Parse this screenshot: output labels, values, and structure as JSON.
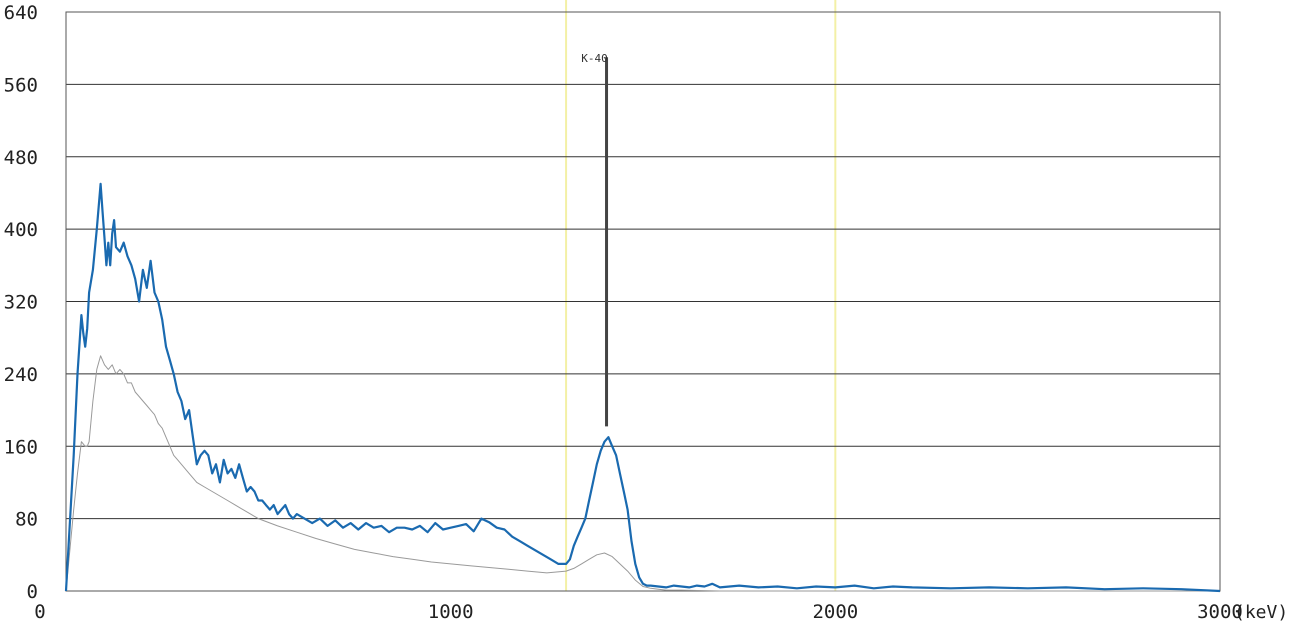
{
  "chart_data": {
    "type": "line",
    "title": "",
    "xlabel": "",
    "ylabel": "",
    "x_unit": "(keV)",
    "xlim": [
      0,
      3000
    ],
    "ylim": [
      0,
      640
    ],
    "x_ticks": [
      "0",
      "1000",
      "2000",
      "3000"
    ],
    "y_ticks": [
      "0",
      "80",
      "160",
      "240",
      "320",
      "400",
      "480",
      "560",
      "640"
    ],
    "grid": "horizontal",
    "legend": "none",
    "colors": {
      "sample": "#1a6ab0",
      "background": "#9a9a9a",
      "marker": "#444444",
      "highlight": "#f3f0a6",
      "grid": "#333333"
    },
    "annotations": [
      {
        "label": "K-40",
        "x": 1400,
        "y_top": 590,
        "y_bottom": 182
      }
    ],
    "highlight_x": [
      1300,
      2000
    ],
    "series": [
      {
        "id": "sample",
        "x": [
          0,
          20,
          30,
          40,
          45,
          50,
          55,
          60,
          70,
          80,
          90,
          95,
          100,
          105,
          110,
          115,
          120,
          125,
          130,
          140,
          150,
          160,
          170,
          180,
          190,
          200,
          210,
          220,
          230,
          240,
          250,
          260,
          270,
          280,
          290,
          300,
          310,
          320,
          330,
          340,
          350,
          360,
          370,
          380,
          390,
          400,
          410,
          420,
          430,
          440,
          450,
          460,
          470,
          480,
          490,
          500,
          510,
          520,
          530,
          540,
          550,
          560,
          570,
          580,
          590,
          600,
          620,
          640,
          660,
          680,
          700,
          720,
          740,
          760,
          780,
          800,
          820,
          840,
          860,
          880,
          900,
          920,
          940,
          960,
          980,
          1000,
          1020,
          1040,
          1060,
          1080,
          1100,
          1120,
          1140,
          1160,
          1180,
          1200,
          1220,
          1240,
          1260,
          1280,
          1300,
          1310,
          1320,
          1330,
          1340,
          1350,
          1360,
          1370,
          1380,
          1390,
          1400,
          1410,
          1420,
          1430,
          1440,
          1450,
          1460,
          1470,
          1480,
          1490,
          1500,
          1510,
          1520,
          1540,
          1560,
          1580,
          1600,
          1620,
          1640,
          1660,
          1680,
          1700,
          1750,
          1800,
          1850,
          1900,
          1950,
          2000,
          2050,
          2100,
          2150,
          2200,
          2300,
          2400,
          2500,
          2600,
          2700,
          2800,
          2900,
          3000
        ],
        "y": [
          0,
          150,
          240,
          305,
          285,
          270,
          290,
          330,
          355,
          400,
          450,
          420,
          390,
          360,
          385,
          360,
          395,
          410,
          380,
          375,
          385,
          370,
          360,
          345,
          320,
          355,
          335,
          365,
          330,
          320,
          300,
          270,
          255,
          240,
          220,
          210,
          190,
          200,
          170,
          140,
          150,
          155,
          150,
          130,
          140,
          120,
          145,
          130,
          135,
          125,
          140,
          125,
          110,
          115,
          110,
          100,
          100,
          95,
          90,
          95,
          85,
          90,
          95,
          85,
          80,
          85,
          80,
          75,
          80,
          72,
          78,
          70,
          75,
          68,
          75,
          70,
          72,
          65,
          70,
          70,
          68,
          72,
          65,
          75,
          68,
          70,
          72,
          74,
          66,
          80,
          76,
          70,
          68,
          60,
          55,
          50,
          45,
          40,
          35,
          30,
          30,
          35,
          50,
          60,
          70,
          80,
          100,
          120,
          140,
          155,
          165,
          170,
          160,
          150,
          130,
          110,
          90,
          55,
          30,
          15,
          8,
          6,
          6,
          5,
          4,
          6,
          5,
          4,
          6,
          5,
          8,
          4,
          6,
          4,
          5,
          3,
          5,
          4,
          6,
          3,
          5,
          4,
          3,
          4,
          3,
          4,
          2,
          3,
          2,
          0
        ]
      },
      {
        "id": "background",
        "x": [
          0,
          20,
          30,
          40,
          50,
          55,
          60,
          70,
          80,
          90,
          100,
          110,
          120,
          130,
          140,
          150,
          160,
          170,
          180,
          190,
          200,
          210,
          220,
          230,
          240,
          250,
          260,
          270,
          280,
          290,
          300,
          320,
          340,
          360,
          380,
          400,
          420,
          440,
          460,
          480,
          500,
          550,
          600,
          650,
          700,
          750,
          800,
          850,
          900,
          950,
          1000,
          1050,
          1100,
          1150,
          1200,
          1250,
          1300,
          1320,
          1340,
          1360,
          1380,
          1400,
          1420,
          1440,
          1460,
          1480,
          1500,
          1520,
          1540,
          1560,
          1600,
          1700,
          1800,
          1900,
          2000,
          2200,
          2400,
          2600,
          2800,
          3000
        ],
        "y": [
          0,
          90,
          130,
          165,
          160,
          160,
          165,
          210,
          245,
          260,
          250,
          245,
          250,
          240,
          245,
          240,
          230,
          230,
          220,
          215,
          210,
          205,
          200,
          195,
          185,
          180,
          170,
          160,
          150,
          145,
          140,
          130,
          120,
          115,
          110,
          105,
          100,
          95,
          90,
          85,
          80,
          72,
          65,
          58,
          52,
          46,
          42,
          38,
          35,
          32,
          30,
          28,
          26,
          24,
          22,
          20,
          22,
          25,
          30,
          35,
          40,
          42,
          38,
          30,
          22,
          12,
          5,
          3,
          2,
          1,
          1,
          0,
          0,
          0,
          0,
          0,
          0,
          0,
          0,
          0
        ]
      }
    ]
  }
}
